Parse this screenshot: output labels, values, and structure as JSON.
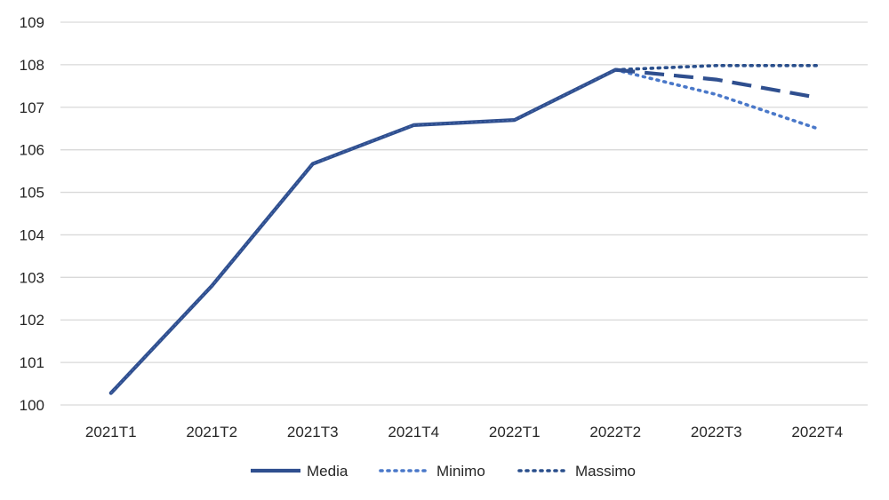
{
  "chart_data": {
    "type": "line",
    "categories": [
      "2021T1",
      "2021T2",
      "2021T3",
      "2021T4",
      "2022T1",
      "2022T2",
      "2022T3",
      "2022T4"
    ],
    "ylim": [
      100,
      109
    ],
    "yticks": [
      100,
      101,
      102,
      103,
      104,
      105,
      106,
      107,
      108,
      109
    ],
    "grid": true,
    "legend_position": "bottom",
    "series": [
      {
        "name": "Media",
        "color": "#2f4f8f",
        "style": "solid-then-dashed",
        "values": [
          100.28,
          102.8,
          105.67,
          106.58,
          106.7,
          107.88,
          107.65,
          107.23
        ]
      },
      {
        "name": "Minimo",
        "color": "#4a78c9",
        "style": "dotted",
        "values": [
          100.28,
          102.8,
          105.67,
          106.58,
          106.7,
          107.88,
          107.3,
          106.5
        ]
      },
      {
        "name": "Massimo",
        "color": "#2a4f8c",
        "style": "dotted",
        "values": [
          100.28,
          102.8,
          105.67,
          106.58,
          106.7,
          107.88,
          107.98,
          107.98
        ]
      }
    ]
  }
}
